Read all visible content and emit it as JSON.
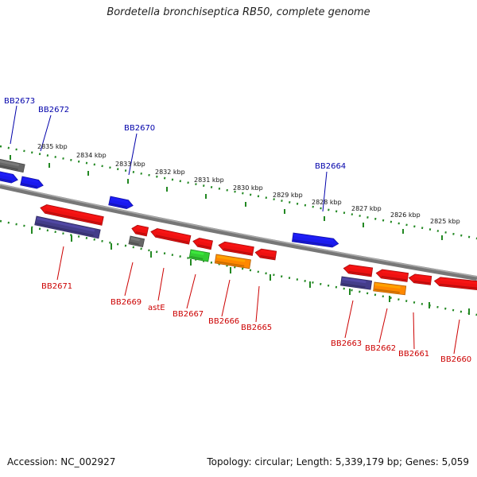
{
  "title": "Bordetella bronchiseptica RB50, complete genome",
  "footer": {
    "accession": "Accession: NC_002927",
    "summary": "Topology: circular; Length: 5,339,179 bp; Genes: 5,059"
  },
  "colors": {
    "backbone": "#888888",
    "ruler": "#228822",
    "blue_gene": "#1a1aee",
    "red_gene": "#ee1111",
    "grey_gene": "#666666",
    "purple_gene": "#443d8a",
    "green_gene": "#33cc33",
    "orange_gene": "#ff8800",
    "label_blue": "#0000aa",
    "label_red": "#cc0000"
  },
  "ruler_labels": [
    "2835 kbp",
    "2834 kbp",
    "2833 kbp",
    "2832 kbp",
    "2831 kbp",
    "2830 kbp",
    "2829 kbp",
    "2828 kbp",
    "2827 kbp",
    "2826 kbp",
    "2825 kbp"
  ],
  "top_gene_labels": [
    "BB2673",
    "BB2672",
    "BB2670",
    "BB2664"
  ],
  "bottom_gene_labels": [
    "BB2671",
    "BB2669",
    "astE",
    "BB2667",
    "BB2666",
    "BB2665",
    "BB2663",
    "BB2662",
    "BB2661",
    "BB2660"
  ]
}
